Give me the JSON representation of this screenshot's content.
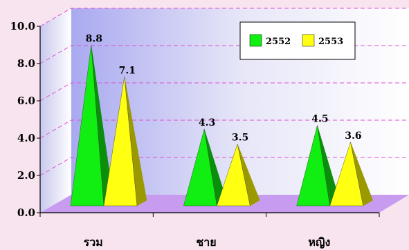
{
  "chart_data": {
    "type": "bar",
    "style": "3d-pyramid",
    "categories": [
      "รวม",
      "ชาย",
      "หญิง"
    ],
    "series": [
      {
        "name": "2552",
        "values": [
          8.8,
          4.3,
          4.5
        ],
        "color": "#11ee11",
        "dark": "#0a8f0a"
      },
      {
        "name": "2553",
        "values": [
          7.1,
          3.5,
          3.6
        ],
        "color": "#ffff11",
        "dark": "#9a9a00"
      }
    ],
    "yticks": [
      "0.0",
      "2.0",
      "4.0",
      "6.0",
      "8.0",
      "10.0"
    ],
    "ylim": [
      0,
      10
    ],
    "grid": true,
    "legend": "top-right",
    "title": "",
    "xlabel": "",
    "ylabel": ""
  }
}
